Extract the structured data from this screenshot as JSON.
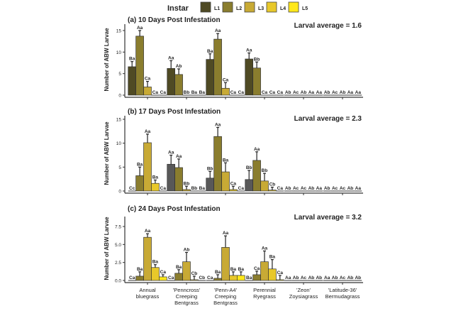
{
  "chart_data": {
    "legend": {
      "title": "Instar",
      "entries": [
        "L1",
        "L2",
        "L3",
        "L4",
        "L5"
      ],
      "placement": "top",
      "colors": [
        "#4f4a24",
        "#8a7d2e",
        "#c8aa35",
        "#e8c82a",
        "#ffe81a"
      ]
    },
    "categories": [
      "Annual bluegrass",
      "'Penncross' Creeping Bentgrass",
      "'Penn-A4' Creeping Bentgrass",
      "Perennial Ryegrass",
      "'Zeon' Zoysiagrass",
      "'Latitude-36' Bermudagrass"
    ],
    "ylabel": "Number of ABW Larvae",
    "panels": [
      {
        "type": "bar",
        "title": "(a) 10 Days Post Infestation",
        "annotation": "Larval average = 1.6",
        "ylim": [
          0,
          16.5
        ],
        "yticks": [
          "0",
          "5",
          "10",
          "15"
        ],
        "ytick_values": [
          0,
          5,
          10,
          15
        ],
        "values": [
          [
            6.6,
            13.7,
            1.9,
            0,
            0
          ],
          [
            6.2,
            4.8,
            0,
            0,
            0
          ],
          [
            8.3,
            13.0,
            1.6,
            0,
            0
          ],
          [
            8.4,
            6.3,
            0,
            0,
            0
          ],
          [
            0,
            0,
            0,
            0,
            0
          ],
          [
            0,
            0,
            0,
            0,
            0
          ]
        ],
        "error_upper": [
          [
            7.8,
            15.0,
            3.2,
            0,
            0
          ],
          [
            8.0,
            6.1,
            0,
            0,
            0
          ],
          [
            9.6,
            14.3,
            2.9,
            0,
            0
          ],
          [
            9.8,
            7.7,
            0,
            0,
            0
          ],
          [
            0,
            0,
            0,
            0,
            0
          ],
          [
            0,
            0,
            0,
            0,
            0
          ]
        ],
        "letters": [
          [
            "Ba",
            "Aa",
            "Ca",
            "Ca",
            "Ca"
          ],
          [
            "Aa",
            "Ab",
            "Bb",
            "Ba",
            "Ba"
          ],
          [
            "Ba",
            "Aa",
            "Ca",
            "Ca",
            "Ca"
          ],
          [
            "Aa",
            "Bb",
            "Ca",
            "Ca",
            "Ca"
          ],
          [
            "Ab",
            "Ac",
            "Ab",
            "Aa",
            "Aa"
          ],
          [
            "Ab",
            "Ac",
            "Ab",
            "Aa",
            "Aa"
          ]
        ]
      },
      {
        "type": "bar",
        "title": "(b) 17 Days Post Infestation",
        "annotation": "Larval average = 2.3",
        "l1_color": "#585858",
        "ylim": [
          0,
          15.5
        ],
        "yticks": [
          "0",
          "5",
          "10",
          "15"
        ],
        "ytick_values": [
          0,
          5,
          10,
          15
        ],
        "values": [
          [
            0,
            3.2,
            10.1,
            1.6,
            0
          ],
          [
            5.6,
            4.9,
            0.3,
            0,
            0
          ],
          [
            2.7,
            11.4,
            4.0,
            0.3,
            0
          ],
          [
            2.4,
            6.4,
            2.1,
            0.2,
            0
          ],
          [
            0,
            0,
            0,
            0,
            0
          ],
          [
            0,
            0,
            0,
            0,
            0
          ]
        ],
        "error_upper": [
          [
            0,
            5.0,
            11.9,
            2.3,
            0
          ],
          [
            7.5,
            6.7,
            1.0,
            0,
            0
          ],
          [
            4.1,
            13.3,
            5.9,
            1.0,
            0
          ],
          [
            4.3,
            8.2,
            3.7,
            0.8,
            0
          ],
          [
            0,
            0,
            0,
            0,
            0
          ],
          [
            0,
            0,
            0,
            0,
            0
          ]
        ],
        "letters": [
          [
            "Cc",
            "Ba",
            "Aa",
            "Ba",
            "Ca"
          ],
          [
            "Aa",
            "Aa",
            "Bb",
            "Bb",
            "Ba"
          ],
          [
            "Bb",
            "Aa",
            "Ba",
            "Ca",
            "Ca"
          ],
          [
            "Bb",
            "Aa",
            "Bb",
            "Cb",
            "Ca"
          ],
          [
            "Ab",
            "Ac",
            "Ac",
            "Ab",
            "Aa"
          ],
          [
            "Ab",
            "Ac",
            "Ac",
            "Ab",
            "Aa"
          ]
        ]
      },
      {
        "type": "bar",
        "title": "(c) 24 Days Post Infestation",
        "annotation": "Larval average = 3.2",
        "ylim": [
          0,
          9
        ],
        "yticks": [
          "0.0",
          "2.5",
          "5.0",
          "7.5"
        ],
        "ytick_values": [
          0,
          2.5,
          5,
          7.5
        ],
        "values": [
          [
            0,
            0.6,
            6.0,
            1.8,
            0.5
          ],
          [
            0,
            1.0,
            2.6,
            0.1,
            0
          ],
          [
            0,
            0.3,
            4.6,
            0.7,
            0.7
          ],
          [
            0,
            0.8,
            2.6,
            1.6,
            0.1
          ],
          [
            0,
            0,
            0,
            0,
            0
          ],
          [
            0,
            0,
            0,
            0,
            0
          ]
        ],
        "error_upper": [
          [
            0,
            1.2,
            6.5,
            2.2,
            0.8
          ],
          [
            0,
            1.5,
            3.9,
            0.6,
            0
          ],
          [
            0,
            0.8,
            6.2,
            1.2,
            1.2
          ],
          [
            0,
            1.3,
            4.1,
            2.9,
            0.7
          ],
          [
            0,
            0,
            0,
            0,
            0
          ],
          [
            0,
            0,
            0,
            0,
            0
          ]
        ],
        "letters": [
          [
            "Ca",
            "Ba",
            "Aa",
            "Ba",
            "Ca"
          ],
          [
            "Ca",
            "Ba",
            "Ab",
            "Cb",
            "Cb"
          ],
          [
            "Ca",
            "Ba",
            "Aa",
            "Ba",
            "Ba"
          ],
          [
            "Ba",
            "Ca",
            "Aa",
            "Ba",
            "Ca"
          ],
          [
            "Aa",
            "Ab",
            "Ac",
            "Ab",
            "Ab"
          ],
          [
            "Aa",
            "Ab",
            "Ac",
            "Ab",
            "Ab"
          ]
        ]
      }
    ],
    "category_lines": [
      [
        "Annual",
        "bluegrass"
      ],
      [
        "'Penncross'",
        "Creeping",
        "Bentgrass"
      ],
      [
        "'Penn-A4'",
        "Creeping",
        "Bentgrass"
      ],
      [
        "Perennial",
        "Ryegrass"
      ],
      [
        "'Zeon'",
        "Zoysiagrass"
      ],
      [
        "'Latitude-36'",
        "Bermudagrass"
      ]
    ]
  }
}
